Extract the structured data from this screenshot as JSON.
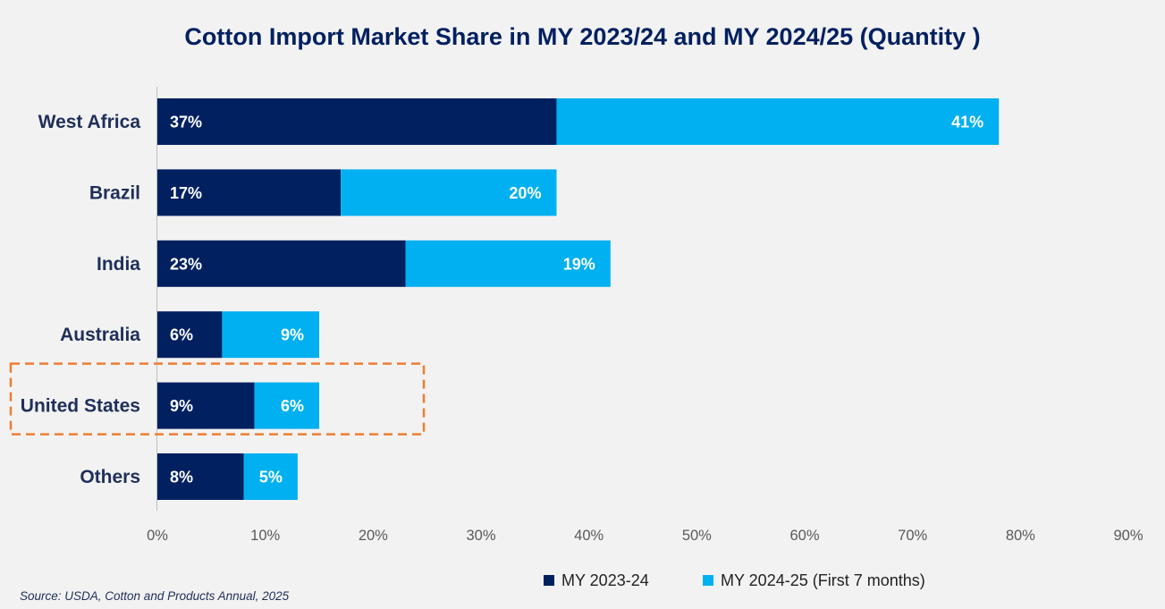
{
  "chart_data": {
    "type": "bar",
    "orientation": "horizontal",
    "stacked": true,
    "title": "Cotton Import Market Share in MY 2023/24 and MY 2024/25 (Quantity )",
    "categories": [
      "West Africa",
      "Brazil",
      "India",
      "Australia",
      "United States",
      "Others"
    ],
    "series": [
      {
        "name": "MY 2023-24",
        "values": [
          37,
          17,
          23,
          6,
          9,
          8
        ],
        "labels": [
          "37%",
          "17%",
          "23%",
          "6%",
          "9%",
          "8%"
        ],
        "color": "#002060"
      },
      {
        "name": "MY 2024-25 (First 7 months)",
        "values": [
          41,
          20,
          19,
          9,
          6,
          5
        ],
        "labels": [
          "41%",
          "20%",
          "19%",
          "9%",
          "6%",
          "5%"
        ],
        "color": "#00b0f0"
      }
    ],
    "xlim": [
      0,
      90
    ],
    "xticks": [
      "0%",
      "10%",
      "20%",
      "30%",
      "40%",
      "50%",
      "60%",
      "70%",
      "80%",
      "90%"
    ],
    "grid": false,
    "legend_position": "bottom-right",
    "highlight": {
      "category": "United States",
      "style": "dashed-box",
      "color": "#ed7d31"
    }
  },
  "source": "Source: USDA, Cotton and Products Annual, 2025"
}
